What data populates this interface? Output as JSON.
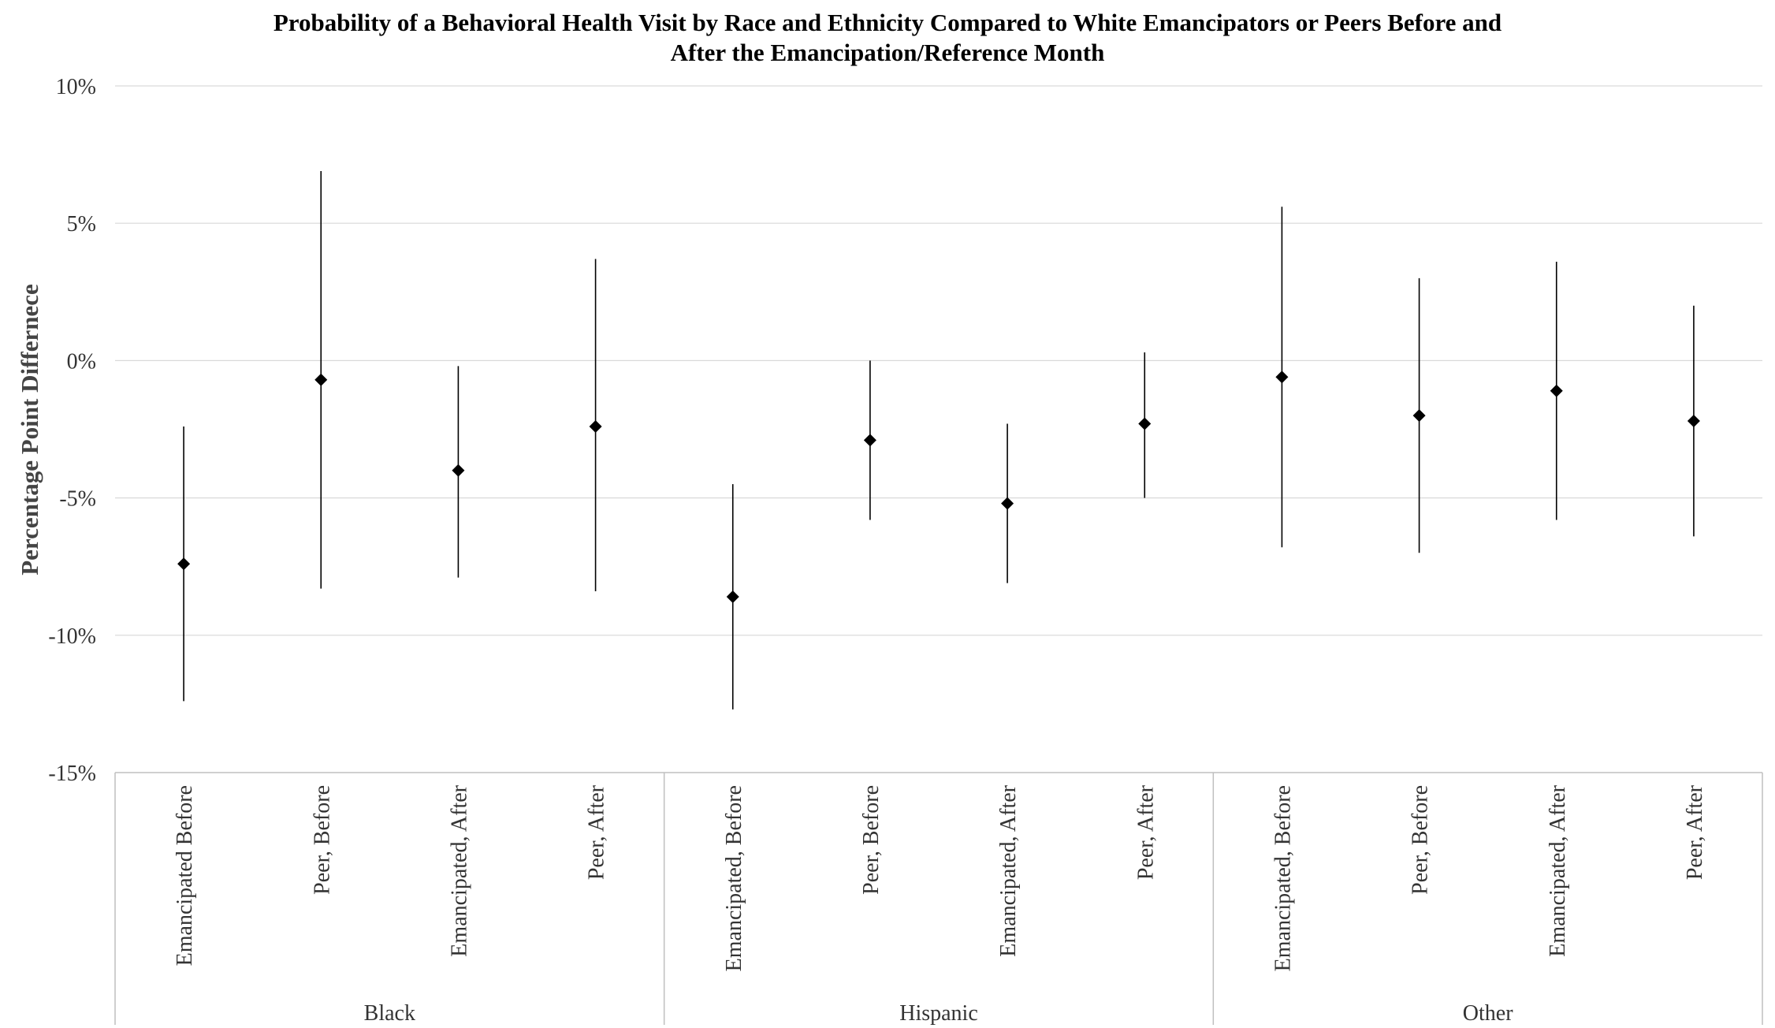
{
  "chart_data": {
    "type": "scatter",
    "title_lines": [
      "Probability of a Behavioral Health Visit by Race and Ethnicity Compared to White Emancipators or Peers Before and",
      "After the Emancipation/Reference Month"
    ],
    "ylabel": "Percentage Point Differnece",
    "ylim": [
      -15,
      10
    ],
    "yticks": [
      {
        "value": 10,
        "label": "10%"
      },
      {
        "value": 5,
        "label": "5%"
      },
      {
        "value": 0,
        "label": "0%"
      },
      {
        "value": -5,
        "label": "-5%"
      },
      {
        "value": -10,
        "label": "-10%"
      },
      {
        "value": -15,
        "label": "-15%"
      }
    ],
    "grid": true,
    "groups": [
      {
        "name": "Black",
        "categories": [
          {
            "label": "Emancipated Before",
            "value": -7.4,
            "lower": -12.4,
            "upper": -2.4
          },
          {
            "label": "Peer, Before",
            "value": -0.7,
            "lower": -8.3,
            "upper": 6.9
          },
          {
            "label": "Emancipated, After",
            "value": -4.0,
            "lower": -7.9,
            "upper": -0.2
          },
          {
            "label": "Peer, After",
            "value": -2.4,
            "lower": -8.4,
            "upper": 3.7
          }
        ]
      },
      {
        "name": "Hispanic",
        "categories": [
          {
            "label": "Emancipated, Before",
            "value": -8.6,
            "lower": -12.7,
            "upper": -4.5
          },
          {
            "label": "Peer, Before",
            "value": -2.9,
            "lower": -5.8,
            "upper": 0.0
          },
          {
            "label": "Emancipated, After",
            "value": -5.2,
            "lower": -8.1,
            "upper": -2.3
          },
          {
            "label": "Peer, After",
            "value": -2.3,
            "lower": -5.0,
            "upper": 0.3
          }
        ]
      },
      {
        "name": "Other",
        "categories": [
          {
            "label": "Emancipated, Before",
            "value": -0.6,
            "lower": -6.8,
            "upper": 5.6
          },
          {
            "label": "Peer, Before",
            "value": -2.0,
            "lower": -7.0,
            "upper": 3.0
          },
          {
            "label": "Emancipated, After",
            "value": -1.1,
            "lower": -5.8,
            "upper": 3.6
          },
          {
            "label": "Peer, After",
            "value": -2.2,
            "lower": -6.4,
            "upper": 2.0
          }
        ]
      }
    ]
  }
}
